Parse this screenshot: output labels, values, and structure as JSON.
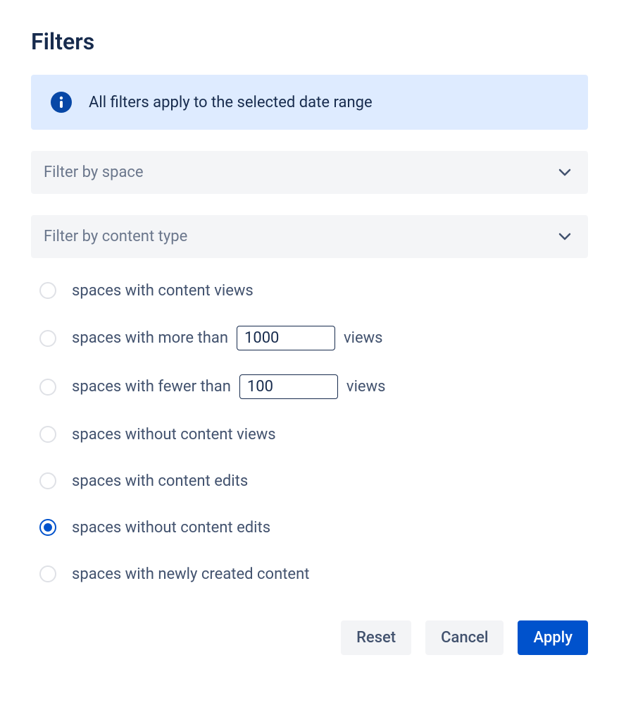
{
  "title": "Filters",
  "banner": {
    "text": "All filters apply to the selected date range",
    "bg_color": "#DEEBFF",
    "icon_color": "#0747A6"
  },
  "dropdowns": [
    {
      "label": "Filter by space"
    },
    {
      "label": "Filter by content type"
    }
  ],
  "options": [
    {
      "pre": "spaces with content views",
      "has_input": false,
      "selected": false
    },
    {
      "pre": "spaces with more than",
      "has_input": true,
      "value": "1000",
      "post": "views",
      "selected": false
    },
    {
      "pre": "spaces with fewer than",
      "has_input": true,
      "value": "100",
      "post": "views",
      "selected": false
    },
    {
      "pre": "spaces without content views",
      "has_input": false,
      "selected": false
    },
    {
      "pre": "spaces with content edits",
      "has_input": false,
      "selected": false
    },
    {
      "pre": "spaces without content edits",
      "has_input": false,
      "selected": true
    },
    {
      "pre": "spaces with newly created content",
      "has_input": false,
      "selected": false
    }
  ],
  "buttons": {
    "reset": "Reset",
    "cancel": "Cancel",
    "apply": "Apply"
  },
  "colors": {
    "primary": "#0052CC",
    "text_muted": "#6B778C",
    "option_text": "#42526E",
    "radio_border": "#DFE1E6",
    "secondary_btn_bg": "#F3F4F6",
    "dropdown_bg": "#F4F5F7"
  }
}
